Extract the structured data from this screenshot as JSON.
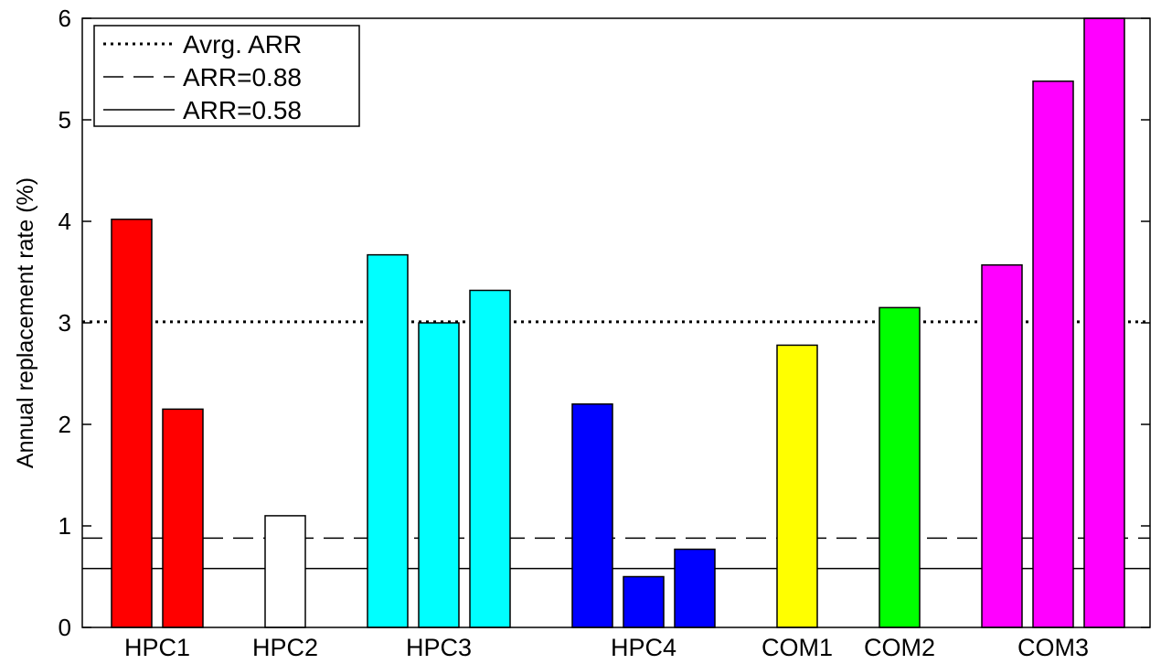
{
  "chart_data": {
    "type": "bar",
    "ylabel": "Annual replacement rate (%)",
    "xlabel": "",
    "title": "",
    "ylim": [
      0,
      6
    ],
    "yticks": [
      0,
      1,
      2,
      3,
      4,
      5,
      6
    ],
    "groups": [
      {
        "label": "HPC1",
        "color": "#ff0000",
        "values": [
          4.02,
          2.15
        ]
      },
      {
        "label": "HPC2",
        "color": "#ffffff",
        "values": [
          1.1
        ]
      },
      {
        "label": "HPC3",
        "color": "#00ffff",
        "values": [
          3.67,
          3.0,
          3.32
        ]
      },
      {
        "label": "HPC4",
        "color": "#0000ff",
        "values": [
          2.2,
          0.5,
          0.77
        ]
      },
      {
        "label": "COM1",
        "color": "#ffff00",
        "values": [
          2.78
        ]
      },
      {
        "label": "COM2",
        "color": "#00ff00",
        "values": [
          3.15
        ]
      },
      {
        "label": "COM3",
        "color": "#ff00ff",
        "values": [
          3.57,
          5.38,
          6.0
        ]
      }
    ],
    "reference_lines": [
      {
        "label": "Avrg. ARR",
        "value": 3.01,
        "style": "dotted"
      },
      {
        "label": "ARR=0.88",
        "value": 0.88,
        "style": "dashed"
      },
      {
        "label": "ARR=0.58",
        "value": 0.58,
        "style": "solid"
      }
    ],
    "legend_position": "top-left",
    "grid": false
  }
}
